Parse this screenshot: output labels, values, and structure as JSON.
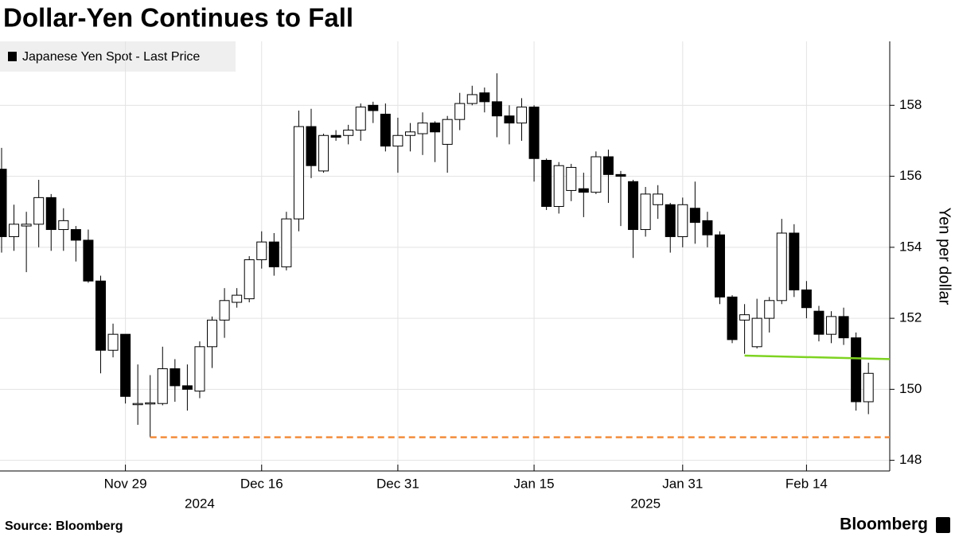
{
  "chart_data": {
    "type": "candlestick",
    "title": "Dollar-Yen Continues to Fall",
    "series_name": "Japanese Yen Spot - Last Price",
    "y_label": "Yen per dollar",
    "source": "Source: Bloomberg",
    "brand": "Bloomberg",
    "up_color": "#ffffff",
    "down_color": "#000000",
    "x": [
      "2024-11-15",
      "2024-11-18",
      "2024-11-19",
      "2024-11-20",
      "2024-11-21",
      "2024-11-22",
      "2024-11-25",
      "2024-11-26",
      "2024-11-27",
      "2024-11-28",
      "2024-11-29",
      "2024-12-02",
      "2024-12-03",
      "2024-12-04",
      "2024-12-05",
      "2024-12-06",
      "2024-12-09",
      "2024-12-10",
      "2024-12-11",
      "2024-12-12",
      "2024-12-13",
      "2024-12-16",
      "2024-12-17",
      "2024-12-18",
      "2024-12-19",
      "2024-12-20",
      "2024-12-23",
      "2024-12-24",
      "2024-12-25",
      "2024-12-26",
      "2024-12-27",
      "2024-12-30",
      "2024-12-31",
      "2025-01-01",
      "2025-01-02",
      "2025-01-03",
      "2025-01-06",
      "2025-01-07",
      "2025-01-08",
      "2025-01-09",
      "2025-01-10",
      "2025-01-13",
      "2025-01-14",
      "2025-01-15",
      "2025-01-16",
      "2025-01-17",
      "2025-01-20",
      "2025-01-21",
      "2025-01-22",
      "2025-01-23",
      "2025-01-24",
      "2025-01-27",
      "2025-01-28",
      "2025-01-29",
      "2025-01-30",
      "2025-01-31",
      "2025-02-03",
      "2025-02-04",
      "2025-02-05",
      "2025-02-06",
      "2025-02-07",
      "2025-02-10",
      "2025-02-11",
      "2025-02-12",
      "2025-02-13",
      "2025-02-14",
      "2025-02-17",
      "2025-02-18",
      "2025-02-19",
      "2025-02-20",
      "2025-02-21"
    ],
    "open": [
      156.2,
      154.3,
      154.6,
      154.65,
      155.4,
      154.5,
      154.5,
      154.2,
      153.05,
      151.1,
      151.55,
      149.6,
      149.6,
      149.6,
      150.58,
      150.1,
      149.95,
      151.2,
      151.95,
      152.45,
      152.55,
      153.65,
      154.15,
      153.45,
      154.8,
      157.4,
      156.15,
      157.15,
      157.15,
      157.3,
      158.0,
      157.75,
      156.85,
      157.15,
      157.2,
      157.5,
      156.9,
      157.6,
      158.05,
      158.35,
      158.1,
      157.7,
      157.5,
      157.95,
      156.45,
      155.15,
      155.6,
      155.65,
      155.55,
      156.55,
      156.05,
      155.85,
      154.5,
      155.2,
      155.2,
      154.3,
      155.1,
      154.75,
      154.35,
      152.6,
      151.95,
      151.2,
      152.0,
      152.5,
      154.4,
      152.8,
      152.2,
      151.55,
      152.05,
      151.45,
      149.65
    ],
    "high": [
      156.8,
      155.2,
      155.0,
      155.9,
      155.5,
      155.1,
      154.6,
      154.5,
      153.2,
      151.85,
      151.55,
      150.7,
      150.4,
      151.2,
      150.85,
      150.7,
      151.35,
      152.05,
      152.85,
      152.85,
      153.75,
      154.45,
      154.4,
      155.0,
      157.85,
      157.9,
      157.2,
      157.3,
      157.45,
      158.05,
      158.1,
      158.05,
      157.65,
      157.5,
      157.8,
      157.55,
      157.7,
      158.35,
      158.55,
      158.5,
      158.9,
      158.0,
      158.2,
      158.0,
      156.5,
      156.4,
      156.35,
      156.1,
      156.7,
      156.75,
      156.15,
      155.9,
      155.7,
      155.75,
      155.25,
      155.4,
      155.85,
      155.0,
      154.45,
      152.65,
      152.4,
      152.55,
      152.6,
      154.8,
      154.65,
      153.05,
      152.35,
      152.2,
      152.3,
      151.6,
      150.75
    ],
    "low": [
      153.85,
      153.9,
      153.3,
      154.0,
      153.9,
      153.9,
      153.6,
      153.0,
      150.45,
      150.9,
      149.6,
      149.0,
      148.65,
      149.55,
      149.65,
      149.4,
      149.75,
      150.6,
      151.45,
      152.3,
      152.45,
      153.4,
      153.2,
      153.35,
      154.45,
      155.95,
      156.1,
      157.0,
      156.9,
      157.0,
      157.5,
      156.7,
      156.1,
      156.7,
      156.6,
      156.4,
      156.1,
      157.3,
      158.0,
      157.8,
      157.1,
      156.9,
      157.0,
      155.85,
      155.05,
      154.95,
      155.3,
      154.85,
      155.5,
      155.25,
      154.6,
      153.7,
      154.3,
      154.8,
      153.85,
      154.0,
      154.1,
      154.0,
      152.4,
      151.3,
      151.0,
      151.15,
      151.6,
      152.4,
      152.6,
      152.0,
      151.35,
      151.3,
      151.25,
      149.4,
      149.3
    ],
    "close": [
      154.3,
      154.65,
      154.65,
      155.4,
      154.5,
      154.75,
      154.2,
      153.05,
      151.1,
      151.55,
      149.8,
      149.6,
      149.62,
      150.58,
      150.1,
      150.0,
      151.2,
      151.95,
      152.5,
      152.65,
      153.65,
      154.15,
      153.45,
      154.8,
      157.4,
      156.3,
      157.15,
      157.1,
      157.3,
      157.95,
      157.85,
      156.85,
      157.15,
      157.25,
      157.5,
      157.25,
      157.6,
      158.05,
      158.3,
      158.1,
      157.7,
      157.5,
      157.95,
      156.5,
      155.15,
      156.3,
      156.25,
      155.55,
      156.55,
      156.05,
      156.0,
      154.5,
      155.5,
      155.5,
      154.3,
      155.2,
      154.7,
      154.35,
      152.6,
      151.4,
      152.1,
      152.0,
      152.5,
      154.4,
      152.8,
      152.3,
      151.55,
      152.05,
      151.45,
      149.65,
      150.45
    ],
    "xticks": [
      {
        "value": "2024-11-29",
        "label": "Nov 29"
      },
      {
        "value": "2024-12-16",
        "label": "Dec 16"
      },
      {
        "value": "2024-12-31",
        "label": "Dec 31"
      },
      {
        "value": "2025-01-15",
        "label": "Jan 15"
      },
      {
        "value": "2025-01-31",
        "label": "Jan 31"
      },
      {
        "value": "2025-02-14",
        "label": "Feb 14"
      }
    ],
    "year_labels": [
      {
        "value": "2024-12-09",
        "label": "2024"
      },
      {
        "value": "2025-01-28",
        "label": "2025"
      }
    ],
    "ylim": [
      147.7,
      159.8
    ],
    "yticks": [
      148,
      150,
      152,
      154,
      156,
      158
    ],
    "grid": true,
    "lines": [
      {
        "start": "2024-12-03",
        "values": [
          148.65,
          148.65
        ],
        "color": "#f28c3c",
        "dashed": true
      },
      {
        "start": "2025-02-07",
        "values": [
          150.95,
          150.85
        ],
        "color": "#7ed321",
        "dashed": false
      }
    ]
  }
}
